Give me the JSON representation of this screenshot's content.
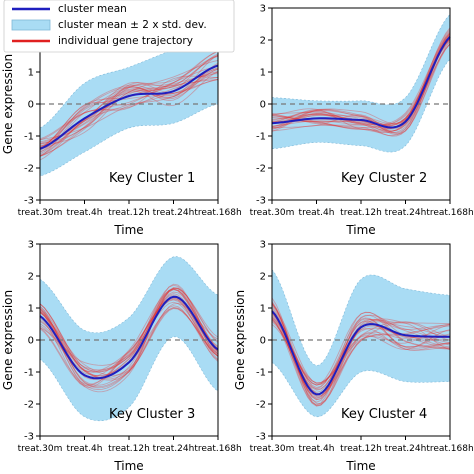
{
  "legend": {
    "items": [
      {
        "label": "cluster mean",
        "kind": "line",
        "color": "#1f1fbf"
      },
      {
        "label": "cluster mean ± 2 x std. dev.",
        "kind": "band",
        "color": "#a9dcf4"
      },
      {
        "label": "individual gene trajectory",
        "kind": "line",
        "color": "#e02020"
      }
    ]
  },
  "colors": {
    "band": "#a9dcf4",
    "band_edge": "#7fb8d8",
    "mean": "#1f1fbf",
    "genes": "#e53030",
    "zero_line": "#777777"
  },
  "chart_data": [
    {
      "type": "line",
      "title": "Key Cluster 1",
      "xlabel": "Time",
      "ylabel": "Gene expression",
      "x": [
        "treat.30m",
        "treat.4h",
        "treat.12h",
        "treat.24h",
        "treat.168h"
      ],
      "ylim": [
        -3,
        3
      ],
      "yticks": [
        -3,
        -2,
        -1,
        0,
        1,
        2,
        3
      ],
      "zero_line": true,
      "mean": [
        -1.4,
        -0.45,
        0.25,
        0.4,
        1.2
      ],
      "band_upper": [
        -0.75,
        0.65,
        1.15,
        1.7,
        2.2
      ],
      "band_lower": [
        -2.25,
        -1.5,
        -0.75,
        -0.6,
        0.0
      ],
      "gene_spread": 0.45
    },
    {
      "type": "line",
      "title": "Key Cluster 2",
      "xlabel": "Time",
      "ylabel": "",
      "x": [
        "treat.30m",
        "treat.4h",
        "treat.12h",
        "treat.24h",
        "treat.168h"
      ],
      "ylim": [
        -3,
        3
      ],
      "yticks": [
        -3,
        -2,
        -1,
        0,
        1,
        2,
        3
      ],
      "zero_line": true,
      "mean": [
        -0.6,
        -0.45,
        -0.5,
        -0.55,
        2.1
      ],
      "band_upper": [
        0.2,
        0.1,
        0.1,
        0.2,
        2.8
      ],
      "band_lower": [
        -1.4,
        -1.2,
        -1.3,
        -1.3,
        1.4
      ],
      "gene_spread": 0.3
    },
    {
      "type": "line",
      "title": "Key Cluster 3",
      "xlabel": "Time",
      "ylabel": "Gene expression",
      "x": [
        "treat.30m",
        "treat.4h",
        "treat.12h",
        "treat.24h",
        "treat.168h"
      ],
      "ylim": [
        -3,
        3
      ],
      "yticks": [
        -3,
        -2,
        -1,
        0,
        1,
        2,
        3
      ],
      "zero_line": true,
      "mean": [
        0.75,
        -1.1,
        -0.7,
        1.35,
        -0.3
      ],
      "band_upper": [
        1.9,
        0.3,
        0.7,
        2.6,
        1.4
      ],
      "band_lower": [
        -0.6,
        -2.4,
        -2.1,
        0.1,
        -1.6
      ],
      "gene_spread": 0.4
    },
    {
      "type": "line",
      "title": "Key Cluster 4",
      "xlabel": "Time",
      "ylabel": "Gene expression",
      "x": [
        "treat.30m",
        "treat.4h",
        "treat.12h",
        "treat.24h",
        "treat.168h"
      ],
      "ylim": [
        -3,
        3
      ],
      "yticks": [
        -3,
        -2,
        -1,
        0,
        1,
        2,
        3
      ],
      "zero_line": true,
      "mean": [
        0.9,
        -1.7,
        0.4,
        0.15,
        0.1
      ],
      "band_upper": [
        2.2,
        -0.8,
        1.9,
        1.6,
        1.4
      ],
      "band_lower": [
        -0.7,
        -2.4,
        -1.0,
        -1.3,
        -1.3
      ],
      "gene_spread": 0.45
    }
  ]
}
